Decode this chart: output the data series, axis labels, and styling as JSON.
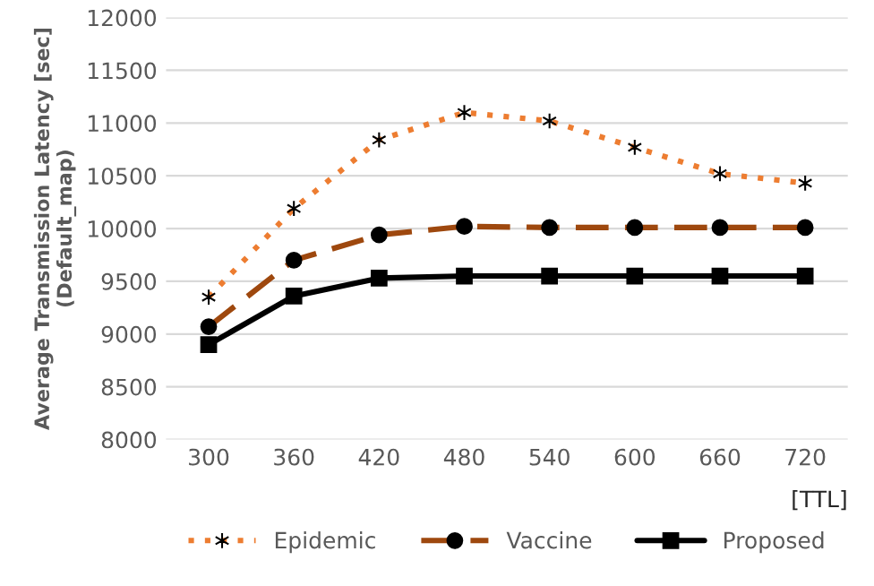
{
  "chart_data": {
    "type": "line",
    "xlabel": "[TTL]",
    "ylabel": "Average Transmission Latency [sec]\n(Default_map)",
    "categories": [
      "300",
      "360",
      "420",
      "480",
      "540",
      "600",
      "660",
      "720"
    ],
    "series": [
      {
        "name": "Epidemic",
        "color": "#ed7d31",
        "marker": "cross",
        "line_style": "dotted",
        "values": [
          9350,
          10190,
          10840,
          11100,
          11020,
          10770,
          10520,
          10430
        ]
      },
      {
        "name": "Vaccine",
        "color": "#9e480e",
        "marker": "circle",
        "line_style": "dashed",
        "values": [
          9070,
          9700,
          9940,
          10020,
          10010,
          10010,
          10010,
          10010
        ]
      },
      {
        "name": "Proposed",
        "color": "#000000",
        "marker": "square",
        "line_style": "solid",
        "values": [
          8900,
          9360,
          9530,
          9550,
          9550,
          9550,
          9550,
          9550
        ]
      }
    ],
    "ylim": [
      8000,
      12000
    ],
    "yticks": [
      8000,
      8500,
      9000,
      9500,
      10000,
      10500,
      11000,
      11500,
      12000
    ],
    "grid": "y",
    "legend": "bottom"
  }
}
